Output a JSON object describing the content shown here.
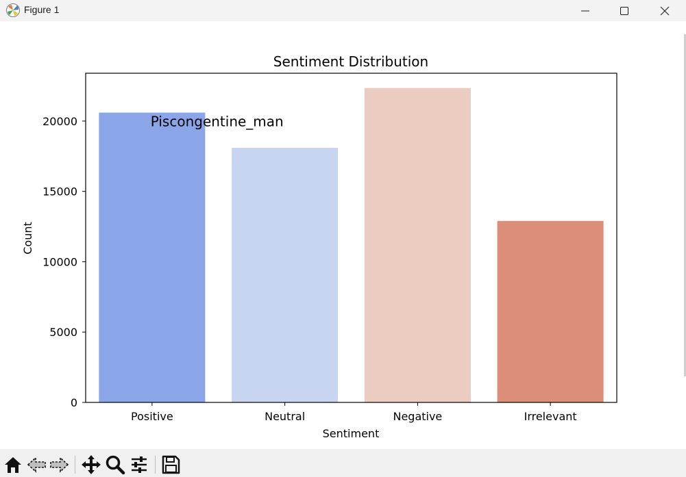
{
  "window": {
    "title": "Figure 1",
    "controls": [
      "minimize-icon",
      "maximize-icon",
      "close-icon"
    ]
  },
  "toolbar": {
    "tools": [
      "home-icon",
      "back-arrow-icon",
      "forward-arrow-icon",
      "pan-icon",
      "zoom-icon",
      "configure-subplots-icon",
      "save-icon"
    ]
  },
  "chart_data": {
    "type": "bar",
    "title": "Sentiment Distribution",
    "xlabel": "Sentiment",
    "ylabel": "Count",
    "categories": [
      "Positive",
      "Neutral",
      "Negative",
      "Irrelevant"
    ],
    "values": [
      20600,
      18100,
      22350,
      12900
    ],
    "colors": [
      "#8aa6e9",
      "#c7d5f0",
      "#eaccc0",
      "#dc8e78"
    ],
    "ylim": [
      0,
      23400
    ],
    "yticks": [
      0,
      5000,
      10000,
      15000,
      20000
    ],
    "grid": false,
    "annotation": {
      "text": "Piscongentine_man",
      "x": "Positive",
      "y": 20300
    }
  }
}
